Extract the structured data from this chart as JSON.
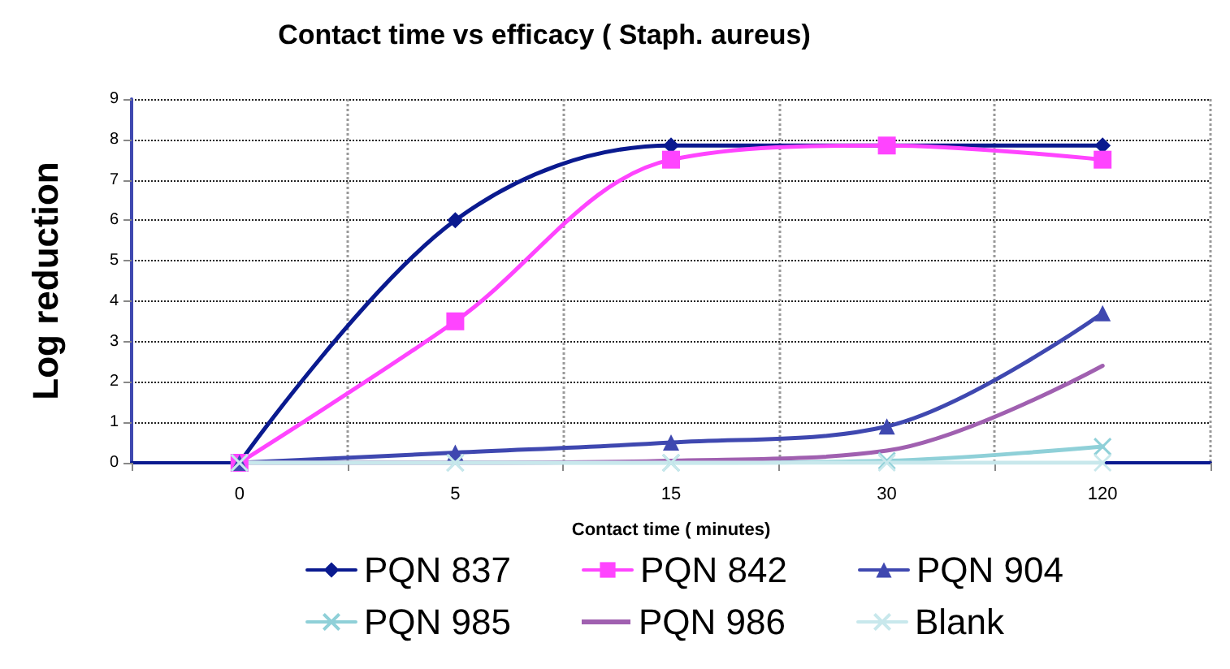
{
  "chart_data": {
    "type": "line",
    "title": "Contact time vs efficacy ( Staph. aureus)",
    "xlabel": "Contact time ( minutes)",
    "ylabel": "Log reduction",
    "categories": [
      "0",
      "5",
      "15",
      "30",
      "120"
    ],
    "series": [
      {
        "name": "PQN 837",
        "color": "#0a1a8f",
        "marker": "diamond",
        "values": [
          0,
          6,
          7.85,
          null,
          7.85
        ]
      },
      {
        "name": "PQN 842",
        "color": "#ff44ff",
        "marker": "square",
        "values": [
          0,
          3.5,
          7.5,
          7.85,
          7.5
        ]
      },
      {
        "name": "PQN 904",
        "color": "#3f48b0",
        "marker": "triangle",
        "values": [
          0,
          0.25,
          0.5,
          0.9,
          3.7
        ]
      },
      {
        "name": "PQN 985",
        "color": "#8fd0d8",
        "marker": "cross",
        "values": [
          0,
          0,
          0,
          0.05,
          0.4
        ]
      },
      {
        "name": "PQN 986",
        "color": "#a060b0",
        "marker": "none",
        "values": [
          0,
          0,
          0.05,
          0.3,
          2.4
        ]
      },
      {
        "name": "Blank",
        "color": "#c8e8ec",
        "marker": "cross",
        "values": [
          0,
          0,
          0,
          0,
          0
        ]
      }
    ],
    "ylim": [
      0,
      9
    ],
    "yticks": [
      0,
      1,
      2,
      3,
      4,
      5,
      6,
      7,
      8,
      9
    ],
    "grid": true,
    "legend": "bottom"
  }
}
